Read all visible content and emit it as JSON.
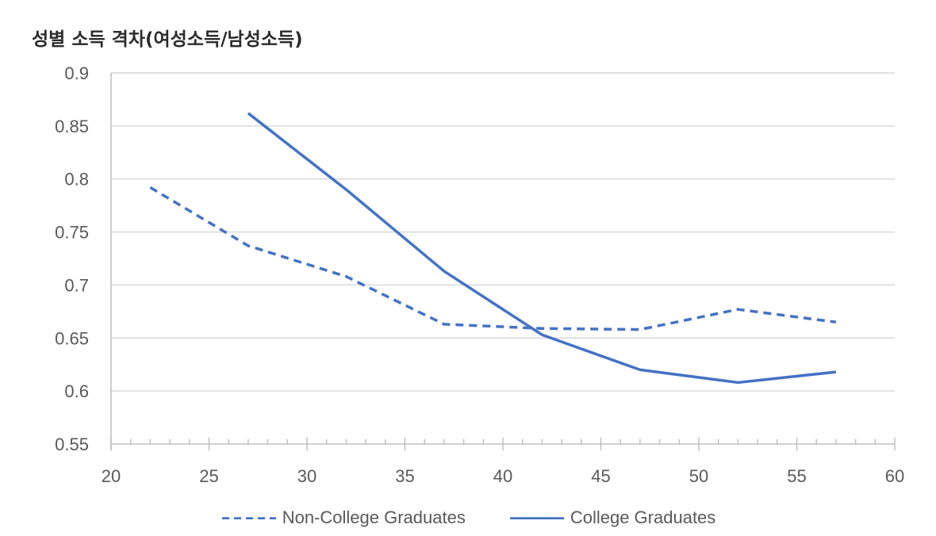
{
  "title": "성별 소득 격차(여성소득/남성소득)",
  "colors": {
    "series": "#4472C4",
    "grid": "#D9D9D9",
    "axis": "#BFBFBF",
    "text": "#595959"
  },
  "chart_data": {
    "type": "line",
    "title": "성별 소득 격차(여성소득/남성소득)",
    "xlabel": "",
    "ylabel": "",
    "xlim": [
      20,
      60
    ],
    "ylim": [
      0.55,
      0.9
    ],
    "x_ticks": [
      20,
      25,
      30,
      35,
      40,
      45,
      50,
      55,
      60
    ],
    "y_ticks": [
      0.55,
      0.6,
      0.65,
      0.7,
      0.75,
      0.8,
      0.85,
      0.9
    ],
    "y_tick_labels": [
      "0.55",
      "0.6",
      "0.65",
      "0.7",
      "0.75",
      "0.8",
      "0.85",
      "0.9"
    ],
    "grid": true,
    "legend_position": "bottom",
    "series": [
      {
        "name": "Non-College Graduates",
        "style": "dashed",
        "x": [
          22,
          27,
          32,
          37,
          42,
          47,
          52,
          57
        ],
        "values": [
          0.792,
          0.737,
          0.708,
          0.663,
          0.659,
          0.658,
          0.677,
          0.665
        ]
      },
      {
        "name": "College Graduates",
        "style": "solid",
        "x": [
          27,
          32,
          37,
          42,
          47,
          52,
          57
        ],
        "values": [
          0.862,
          0.79,
          0.713,
          0.653,
          0.62,
          0.608,
          0.618
        ]
      }
    ]
  },
  "legend": [
    {
      "label": "Non-College Graduates",
      "style": "dashed"
    },
    {
      "label": "College Graduates",
      "style": "solid"
    }
  ]
}
